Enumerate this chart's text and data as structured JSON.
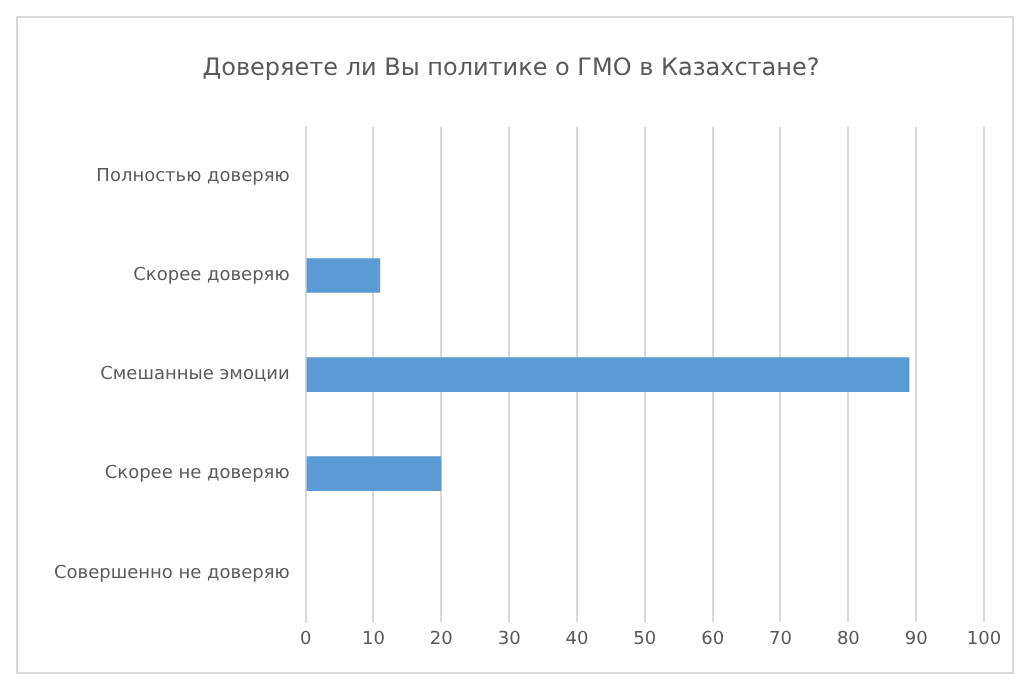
{
  "chart_data": {
    "type": "bar",
    "orientation": "horizontal",
    "title": "Доверяете ли Вы политике о ГМО в Казахстане?",
    "categories": [
      "Полностью доверяю",
      "Скорее доверяю",
      "Смешанные эмоции",
      "Скорее не доверяю",
      "Совершенно не доверяю"
    ],
    "values": [
      0,
      11,
      89,
      20,
      0
    ],
    "color": "#5b9bd5",
    "xlim": [
      0,
      100
    ],
    "xticks": [
      0,
      10,
      20,
      30,
      40,
      50,
      60,
      70,
      80,
      90,
      100
    ],
    "grid": "x"
  }
}
